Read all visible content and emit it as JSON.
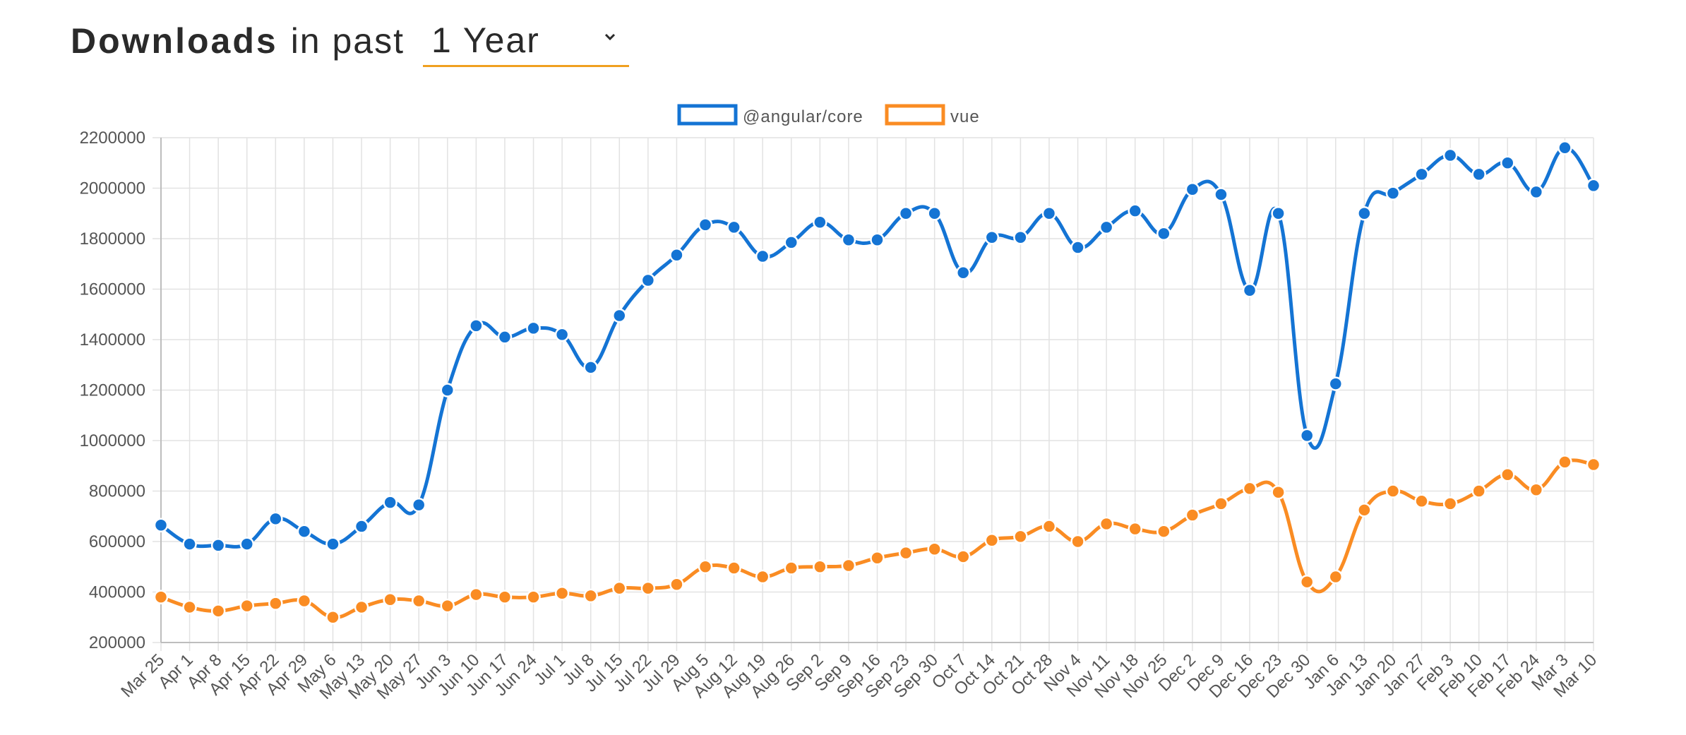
{
  "header": {
    "title": "Downloads",
    "in_past": "in past",
    "period": "1 Year",
    "period_options": [
      "1 Year"
    ],
    "chevron_icon": "chevron-down-icon",
    "underline_color": "#f0a020"
  },
  "chart_data": {
    "type": "line",
    "title": "",
    "xlabel": "",
    "ylabel": "",
    "ylim": [
      200000,
      2200000
    ],
    "yticks": [
      200000,
      400000,
      600000,
      800000,
      1000000,
      1200000,
      1400000,
      1600000,
      1800000,
      2000000,
      2200000
    ],
    "grid": true,
    "legend_position": "top-center",
    "categories": [
      "Mar 25",
      "Apr 1",
      "Apr 8",
      "Apr 15",
      "Apr 22",
      "Apr 29",
      "May 6",
      "May 13",
      "May 20",
      "May 27",
      "Jun 3",
      "Jun 10",
      "Jun 17",
      "Jun 24",
      "Jul 1",
      "Jul 8",
      "Jul 15",
      "Jul 22",
      "Jul 29",
      "Aug 5",
      "Aug 12",
      "Aug 19",
      "Aug 26",
      "Sep 2",
      "Sep 9",
      "Sep 16",
      "Sep 23",
      "Sep 30",
      "Oct 7",
      "Oct 14",
      "Oct 21",
      "Oct 28",
      "Nov 4",
      "Nov 11",
      "Nov 18",
      "Nov 25",
      "Dec 2",
      "Dec 9",
      "Dec 16",
      "Dec 23",
      "Dec 30",
      "Jan 6",
      "Jan 13",
      "Jan 20",
      "Jan 27",
      "Feb 3",
      "Feb 10",
      "Feb 17",
      "Feb 24",
      "Mar 3",
      "Mar 10"
    ],
    "series": [
      {
        "name": "@angular/core",
        "color": "#1474d4",
        "values": [
          665000,
          590000,
          585000,
          590000,
          690000,
          640000,
          590000,
          660000,
          755000,
          745000,
          1200000,
          1455000,
          1410000,
          1445000,
          1420000,
          1290000,
          1495000,
          1635000,
          1735000,
          1855000,
          1845000,
          1730000,
          1785000,
          1865000,
          1795000,
          1795000,
          1900000,
          1900000,
          1665000,
          1805000,
          1805000,
          1900000,
          1765000,
          1845000,
          1910000,
          1820000,
          1995000,
          1975000,
          1595000,
          1900000,
          1020000,
          1225000,
          1900000,
          1980000,
          2055000,
          2130000,
          2055000,
          2100000,
          1985000,
          2160000,
          2010000
        ]
      },
      {
        "name": "vue",
        "color": "#fa8c23",
        "values": [
          380000,
          340000,
          325000,
          345000,
          355000,
          365000,
          300000,
          340000,
          370000,
          365000,
          345000,
          390000,
          380000,
          380000,
          395000,
          385000,
          415000,
          415000,
          430000,
          500000,
          495000,
          460000,
          495000,
          500000,
          505000,
          535000,
          555000,
          570000,
          540000,
          605000,
          620000,
          660000,
          600000,
          670000,
          650000,
          640000,
          705000,
          750000,
          810000,
          795000,
          440000,
          460000,
          725000,
          800000,
          760000,
          750000,
          800000,
          865000,
          805000,
          915000,
          905000
        ]
      }
    ]
  }
}
